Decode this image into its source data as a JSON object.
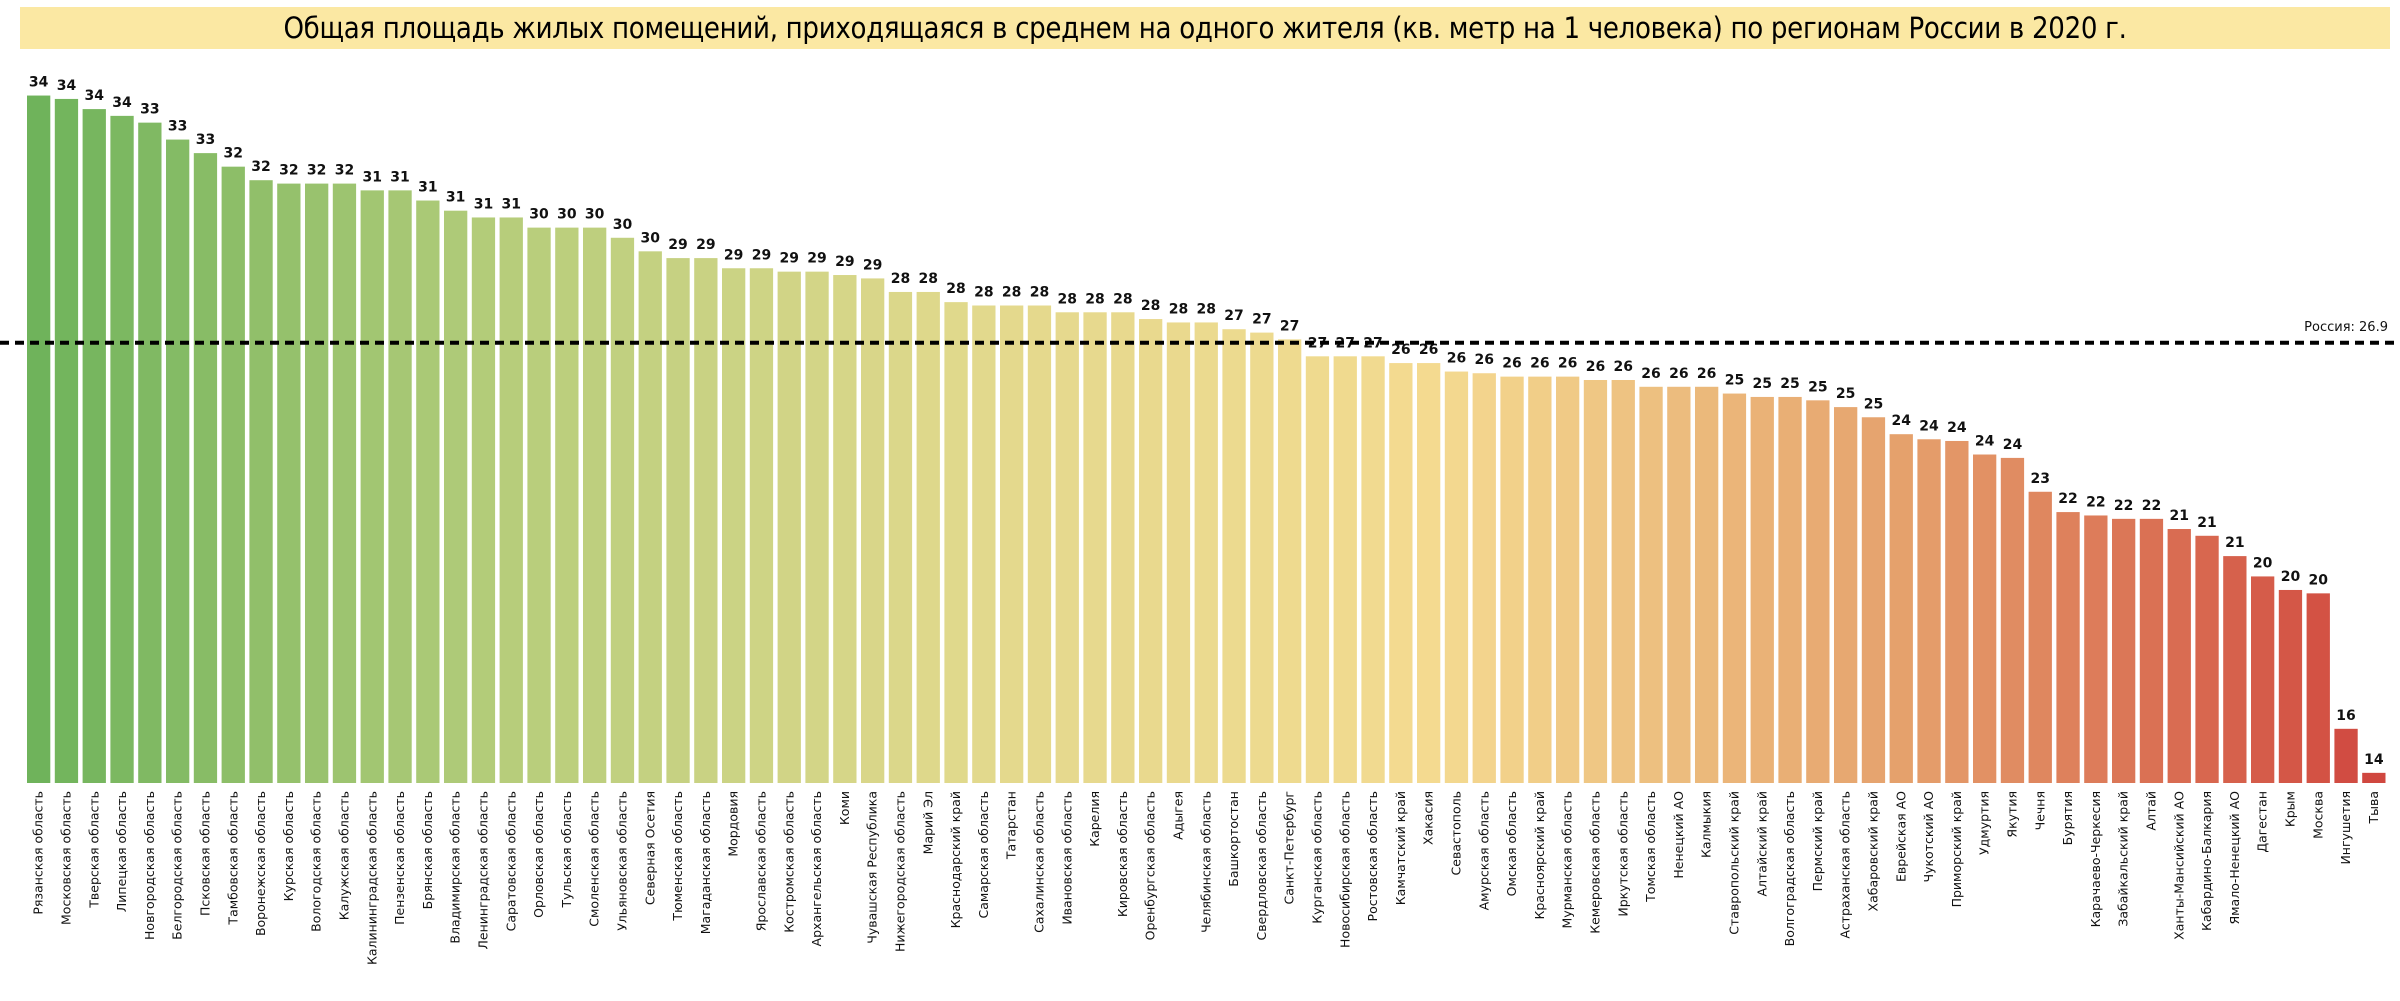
{
  "chart_data": {
    "type": "bar",
    "title": "Общая площадь жилых помещений, приходящаяся в среднем на одного жителя (кв. метр на 1 человека) по регионам России в 2020 г.",
    "xlabel": "",
    "ylabel": "",
    "ylim": [
      13.9,
      34.6
    ],
    "grid": false,
    "categories": [
      "Рязанская область",
      "Московская область",
      "Тверская область",
      "Липецкая область",
      "Новгородская область",
      "Белгородская область",
      "Псковская область",
      "Тамбовская область",
      "Воронежская область",
      "Курская область",
      "Вологодская область",
      "Калужская область",
      "Калининградская область",
      "Пензенская область",
      "Брянская область",
      "Владимирская область",
      "Ленинградская область",
      "Саратовская область",
      "Орловская область",
      "Тульская область",
      "Смоленская область",
      "Ульяновская область",
      "Северная Осетия",
      "Тюменская область",
      "Магаданская область",
      "Мордовия",
      "Ярославская область",
      "Костромская область",
      "Архангельская область",
      "Коми",
      "Чувашская Республика",
      "Нижегородская область",
      "Марий Эл",
      "Краснодарский край",
      "Самарская область",
      "Татарстан",
      "Сахалинская область",
      "Ивановская область",
      "Карелия",
      "Кировская область",
      "Оренбургская область",
      "Адыгея",
      "Челябинская область",
      "Башкортостан",
      "Свердловская область",
      "Санкт-Петербург",
      "Курганская область",
      "Новосибирская область",
      "Ростовская область",
      "Камчатский край",
      "Хакасия",
      "Севастополь",
      "Амурская область",
      "Омская область",
      "Красноярский край",
      "Мурманская область",
      "Кемеровская область",
      "Иркутская область",
      "Томская область",
      "Ненецкий АО",
      "Калмыкия",
      "Ставропольский край",
      "Алтайский край",
      "Волгоградская область",
      "Пермский край",
      "Астраханская область",
      "Хабаровский край",
      "Еврейская АО",
      "Чукотский АО",
      "Приморский край",
      "Удмуртия",
      "Якутия",
      "Чечня",
      "Бурятия",
      "Карачаево-Черкесия",
      "Забайкальский край",
      "Алтай",
      "Ханты-Мансийский АО",
      "Кабардино-Балкария",
      "Ямало-Ненецкий АО",
      "Дагестан",
      "Крым",
      "Москва",
      "Ингушетия",
      "Тыва"
    ],
    "values": [
      34.2,
      34.1,
      33.8,
      33.6,
      33.4,
      32.9,
      32.5,
      32.1,
      31.7,
      31.6,
      31.6,
      31.6,
      31.4,
      31.4,
      31.1,
      30.8,
      30.6,
      30.6,
      30.3,
      30.3,
      30.3,
      30.0,
      29.6,
      29.4,
      29.4,
      29.1,
      29.1,
      29.0,
      29.0,
      28.9,
      28.8,
      28.4,
      28.4,
      28.1,
      28.0,
      28.0,
      28.0,
      27.8,
      27.8,
      27.8,
      27.6,
      27.5,
      27.5,
      27.3,
      27.2,
      27.0,
      26.5,
      26.5,
      26.5,
      26.3,
      26.3,
      26.05,
      26.0,
      25.9,
      25.9,
      25.9,
      25.8,
      25.8,
      25.6,
      25.6,
      25.6,
      25.4,
      25.3,
      25.3,
      25.2,
      25.0,
      24.7,
      24.2,
      24.05,
      24.0,
      23.6,
      23.5,
      22.5,
      21.9,
      21.8,
      21.7,
      21.7,
      21.4,
      21.2,
      20.6,
      20.0,
      19.6,
      19.5,
      15.5,
      14.2
    ],
    "reference_line": {
      "label_text": "Россия: 26.9",
      "value": 26.9,
      "style": "dashed",
      "color": "#000000"
    },
    "color_stops": [
      "#6fb35b",
      "#b6cd7b",
      "#e2d98d",
      "#f4da90",
      "#e5a06c",
      "#d0473f"
    ]
  }
}
